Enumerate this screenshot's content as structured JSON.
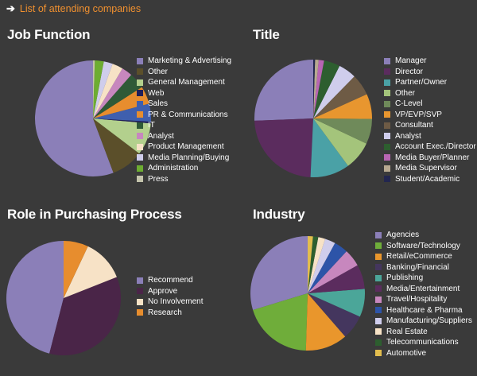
{
  "header": {
    "link_text": "List of attending companies"
  },
  "chart_data": [
    {
      "type": "pie",
      "title": "Job Function",
      "slices": [
        {
          "label": "Marketing & Advertising",
          "value": 56.0,
          "color": "#8b7fb8"
        },
        {
          "label": "Other",
          "value": 9.0,
          "color": "#5b4f2a"
        },
        {
          "label": "General Management",
          "value": 9.0,
          "color": "#b3d08d"
        },
        {
          "label": "Web",
          "value": 0.5,
          "color": "#1f1f5a"
        },
        {
          "label": "Sales",
          "value": 5.0,
          "color": "#3f5fae"
        },
        {
          "label": "PR & Communications",
          "value": 5.0,
          "color": "#e78d2e"
        },
        {
          "label": "IT",
          "value": 4.5,
          "color": "#2f5a37"
        },
        {
          "label": "Analyst",
          "value": 3.0,
          "color": "#c787be"
        },
        {
          "label": "Product Management",
          "value": 3.0,
          "color": "#f7e2c6"
        },
        {
          "label": "Media Planning/Buying",
          "value": 2.5,
          "color": "#cfcdec"
        },
        {
          "label": "Administration",
          "value": 2.5,
          "color": "#6dad32"
        },
        {
          "label": "Press",
          "value": 0.5,
          "color": "#c4c4ac"
        }
      ]
    },
    {
      "type": "pie",
      "title": "Title",
      "slices": [
        {
          "label": "Manager",
          "value": 26.0,
          "color": "#8b7fb8"
        },
        {
          "label": "Director",
          "value": 24.0,
          "color": "#5b2c5e"
        },
        {
          "label": "Partner/Owner",
          "value": 11.0,
          "color": "#4aa1a6"
        },
        {
          "label": "Other",
          "value": 8.0,
          "color": "#a4c47b"
        },
        {
          "label": "C-Level",
          "value": 7.0,
          "color": "#6f8a5a"
        },
        {
          "label": "VP/EVP/SVP",
          "value": 7.0,
          "color": "#e8962f"
        },
        {
          "label": "Consultant",
          "value": 6.0,
          "color": "#6e5b45"
        },
        {
          "label": "Analyst",
          "value": 5.0,
          "color": "#cfcdec"
        },
        {
          "label": "Account Exec./Director",
          "value": 4.5,
          "color": "#2d5e2f"
        },
        {
          "label": "Media Buyer/Planner",
          "value": 1.5,
          "color": "#b865b3"
        },
        {
          "label": "Media Supervisor",
          "value": 1.0,
          "color": "#b7a990"
        },
        {
          "label": "Student/Academic",
          "value": 0.5,
          "color": "#22264f"
        }
      ]
    },
    {
      "type": "pie",
      "title": "Role in Purchasing Process",
      "slices": [
        {
          "label": "Recommend",
          "value": 46.0,
          "color": "#8b7fb8"
        },
        {
          "label": "Approve",
          "value": 35.0,
          "color": "#4a2548"
        },
        {
          "label": "No Involvement",
          "value": 12.0,
          "color": "#f7e2c6"
        },
        {
          "label": "Research",
          "value": 7.0,
          "color": "#e78d2e"
        }
      ]
    },
    {
      "type": "pie",
      "title": "Industry",
      "slices": [
        {
          "label": "Agencies",
          "value": 30.0,
          "color": "#8b7fb8"
        },
        {
          "label": "Software/Technology",
          "value": 20.0,
          "color": "#6fad3a"
        },
        {
          "label": "Retail/eCommerce",
          "value": 12.0,
          "color": "#e9962c"
        },
        {
          "label": "Banking/Financial",
          "value": 7.0,
          "color": "#44365e"
        },
        {
          "label": "Publishing",
          "value": 8.0,
          "color": "#4ba699"
        },
        {
          "label": "Media/Entertainment",
          "value": 7.0,
          "color": "#5b2c5e"
        },
        {
          "label": "Travel/Hospitality",
          "value": 5.0,
          "color": "#c787be"
        },
        {
          "label": "Healthcare & Pharma",
          "value": 4.0,
          "color": "#2d54a8"
        },
        {
          "label": "Manufacturing/Suppliers",
          "value": 3.0,
          "color": "#cfcdec"
        },
        {
          "label": "Real Estate",
          "value": 2.0,
          "color": "#f7e2c6"
        },
        {
          "label": "Telecommunications",
          "value": 1.5,
          "color": "#2d5e2f"
        },
        {
          "label": "Automotive",
          "value": 1.5,
          "color": "#e2bd4e"
        }
      ]
    }
  ]
}
